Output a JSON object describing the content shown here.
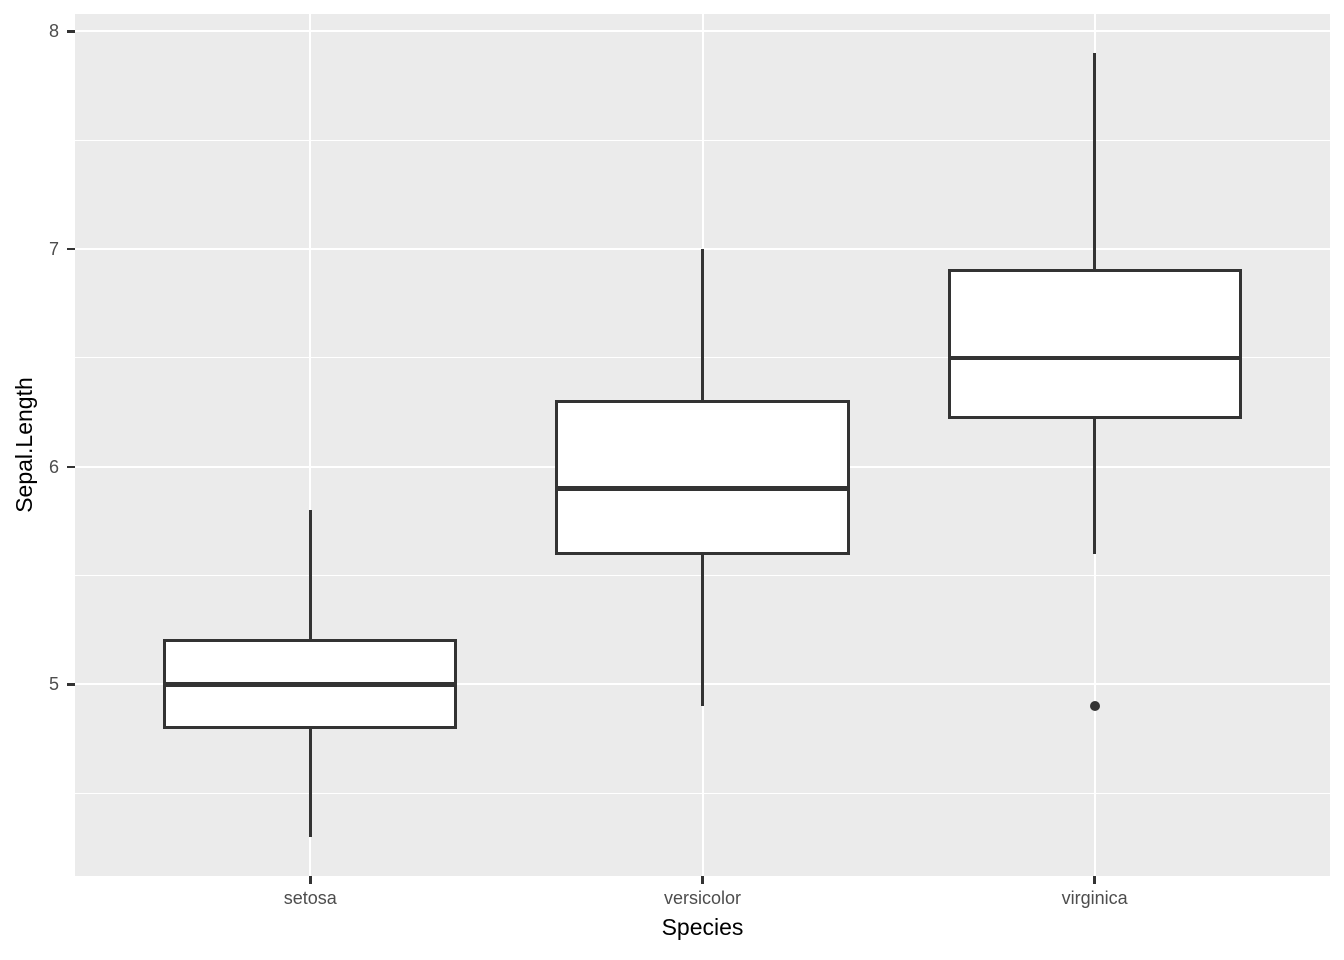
{
  "chart_data": {
    "type": "boxplot",
    "title": "",
    "xlabel": "Species",
    "ylabel": "Sepal.Length",
    "categories": [
      "setosa",
      "versicolor",
      "virginica"
    ],
    "series": [
      {
        "name": "setosa",
        "whisker_low": 4.3,
        "q1": 4.8,
        "median": 5.0,
        "q3": 5.2,
        "whisker_high": 5.8,
        "outliers": []
      },
      {
        "name": "versicolor",
        "whisker_low": 4.9,
        "q1": 5.6,
        "median": 5.9,
        "q3": 6.3,
        "whisker_high": 7.0,
        "outliers": []
      },
      {
        "name": "virginica",
        "whisker_low": 5.6,
        "q1": 6.225,
        "median": 6.5,
        "q3": 6.9,
        "whisker_high": 7.9,
        "outliers": [
          4.9
        ]
      }
    ],
    "y_axis": {
      "tick_labels": [
        "5",
        "6",
        "7",
        "8"
      ],
      "ticks": [
        5,
        6,
        7,
        8
      ],
      "minor_ticks": [
        4.5,
        5.5,
        6.5,
        7.5
      ],
      "range": [
        4.12,
        8.08
      ]
    },
    "x_axis": {
      "tick_labels": [
        "setosa",
        "versicolor",
        "virginica"
      ],
      "range_units": [
        0.4,
        3.6
      ],
      "category_units": [
        1,
        2,
        3
      ]
    },
    "grid": {
      "major": true,
      "minor": true
    },
    "legend": "none",
    "box_width_units": 0.75,
    "colors": {
      "panel_background": "#EBEBEB",
      "gridline": "#FFFFFF",
      "box_stroke": "#333333",
      "box_fill": "#FFFFFF",
      "outlier": "#333333",
      "axis_text": "#4D4D4D",
      "axis_title": "#000000",
      "tick_mark": "#333333",
      "figure_background": "#FFFFFF"
    }
  }
}
